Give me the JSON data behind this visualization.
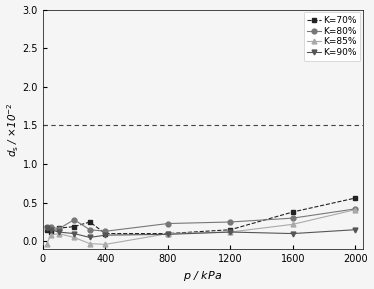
{
  "x_70": [
    25,
    50,
    100,
    200,
    300,
    400,
    800,
    1200,
    1600,
    2000
  ],
  "y_70": [
    0.15,
    0.12,
    0.17,
    0.19,
    0.25,
    0.1,
    0.1,
    0.15,
    0.38,
    0.56
  ],
  "x_80": [
    25,
    50,
    100,
    200,
    300,
    400,
    800,
    1200,
    1600,
    2000
  ],
  "y_80": [
    0.18,
    0.19,
    0.16,
    0.28,
    0.15,
    0.13,
    0.23,
    0.25,
    0.3,
    0.42
  ],
  "x_85": [
    25,
    50,
    100,
    200,
    300,
    400,
    800,
    1200,
    1600,
    2000
  ],
  "y_85": [
    -0.03,
    0.08,
    0.1,
    0.05,
    -0.03,
    -0.04,
    0.1,
    0.12,
    0.22,
    0.41
  ],
  "x_90": [
    25,
    50,
    100,
    200,
    300,
    400,
    800,
    1200,
    1600,
    2000
  ],
  "y_90": [
    0.17,
    0.15,
    0.12,
    0.1,
    0.05,
    0.08,
    0.09,
    0.12,
    0.1,
    0.15
  ],
  "hline_y": 1.5,
  "ylim": [
    -0.1,
    3.0
  ],
  "xlim": [
    0,
    2050
  ],
  "yticks": [
    0.0,
    0.5,
    1.0,
    1.5,
    2.0,
    2.5,
    3.0
  ],
  "xticks": [
    0,
    400,
    800,
    1200,
    1600,
    2000
  ],
  "legend_labels": [
    "K=70%",
    "K=80%",
    "K=85%",
    "K=90%"
  ],
  "color_70": "#222222",
  "color_80": "#777777",
  "color_85": "#aaaaaa",
  "color_90": "#555555",
  "marker_70": "s",
  "marker_80": "o",
  "marker_85": "^",
  "marker_90": "v",
  "line_style_70": "--",
  "line_style_80": "-",
  "line_style_85": "-",
  "line_style_90": "-",
  "figwidth": 3.74,
  "figheight": 2.89,
  "dpi": 100
}
